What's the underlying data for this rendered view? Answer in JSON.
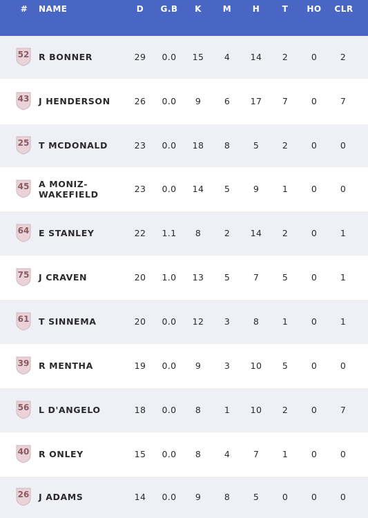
{
  "columns": {
    "num": "#",
    "name": "NAME",
    "d": "D",
    "gb": "G.B",
    "k": "K",
    "m": "M",
    "h": "H",
    "t": "T",
    "ho": "HO",
    "clr": "CLR"
  },
  "colors": {
    "header_bg": "#4a66c4",
    "row_alt_bg": "#eef0f5",
    "badge_fill": "#e9d3d8"
  },
  "players": [
    {
      "number": "52",
      "name": "R BONNER",
      "d": "29",
      "gb": "0.0",
      "k": "15",
      "m": "4",
      "h": "14",
      "t": "2",
      "ho": "0",
      "clr": "2"
    },
    {
      "number": "43",
      "name": "J HENDERSON",
      "d": "26",
      "gb": "0.0",
      "k": "9",
      "m": "6",
      "h": "17",
      "t": "7",
      "ho": "0",
      "clr": "7"
    },
    {
      "number": "25",
      "name": "T MCDONALD",
      "d": "23",
      "gb": "0.0",
      "k": "18",
      "m": "8",
      "h": "5",
      "t": "2",
      "ho": "0",
      "clr": "0"
    },
    {
      "number": "45",
      "name": "A MONIZ-WAKEFIELD",
      "d": "23",
      "gb": "0.0",
      "k": "14",
      "m": "5",
      "h": "9",
      "t": "1",
      "ho": "0",
      "clr": "0"
    },
    {
      "number": "64",
      "name": "E STANLEY",
      "d": "22",
      "gb": "1.1",
      "k": "8",
      "m": "2",
      "h": "14",
      "t": "2",
      "ho": "0",
      "clr": "1"
    },
    {
      "number": "75",
      "name": "J CRAVEN",
      "d": "20",
      "gb": "1.0",
      "k": "13",
      "m": "5",
      "h": "7",
      "t": "5",
      "ho": "0",
      "clr": "1"
    },
    {
      "number": "61",
      "name": "T SINNEMA",
      "d": "20",
      "gb": "0.0",
      "k": "12",
      "m": "3",
      "h": "8",
      "t": "1",
      "ho": "0",
      "clr": "1"
    },
    {
      "number": "39",
      "name": "R MENTHA",
      "d": "19",
      "gb": "0.0",
      "k": "9",
      "m": "3",
      "h": "10",
      "t": "5",
      "ho": "0",
      "clr": "0"
    },
    {
      "number": "56",
      "name": "L D'ANGELO",
      "d": "18",
      "gb": "0.0",
      "k": "8",
      "m": "1",
      "h": "10",
      "t": "2",
      "ho": "0",
      "clr": "7"
    },
    {
      "number": "40",
      "name": "R ONLEY",
      "d": "15",
      "gb": "0.0",
      "k": "8",
      "m": "4",
      "h": "7",
      "t": "1",
      "ho": "0",
      "clr": "0"
    },
    {
      "number": "26",
      "name": "J ADAMS",
      "d": "14",
      "gb": "0.0",
      "k": "9",
      "m": "8",
      "h": "5",
      "t": "0",
      "ho": "0",
      "clr": "0"
    }
  ]
}
